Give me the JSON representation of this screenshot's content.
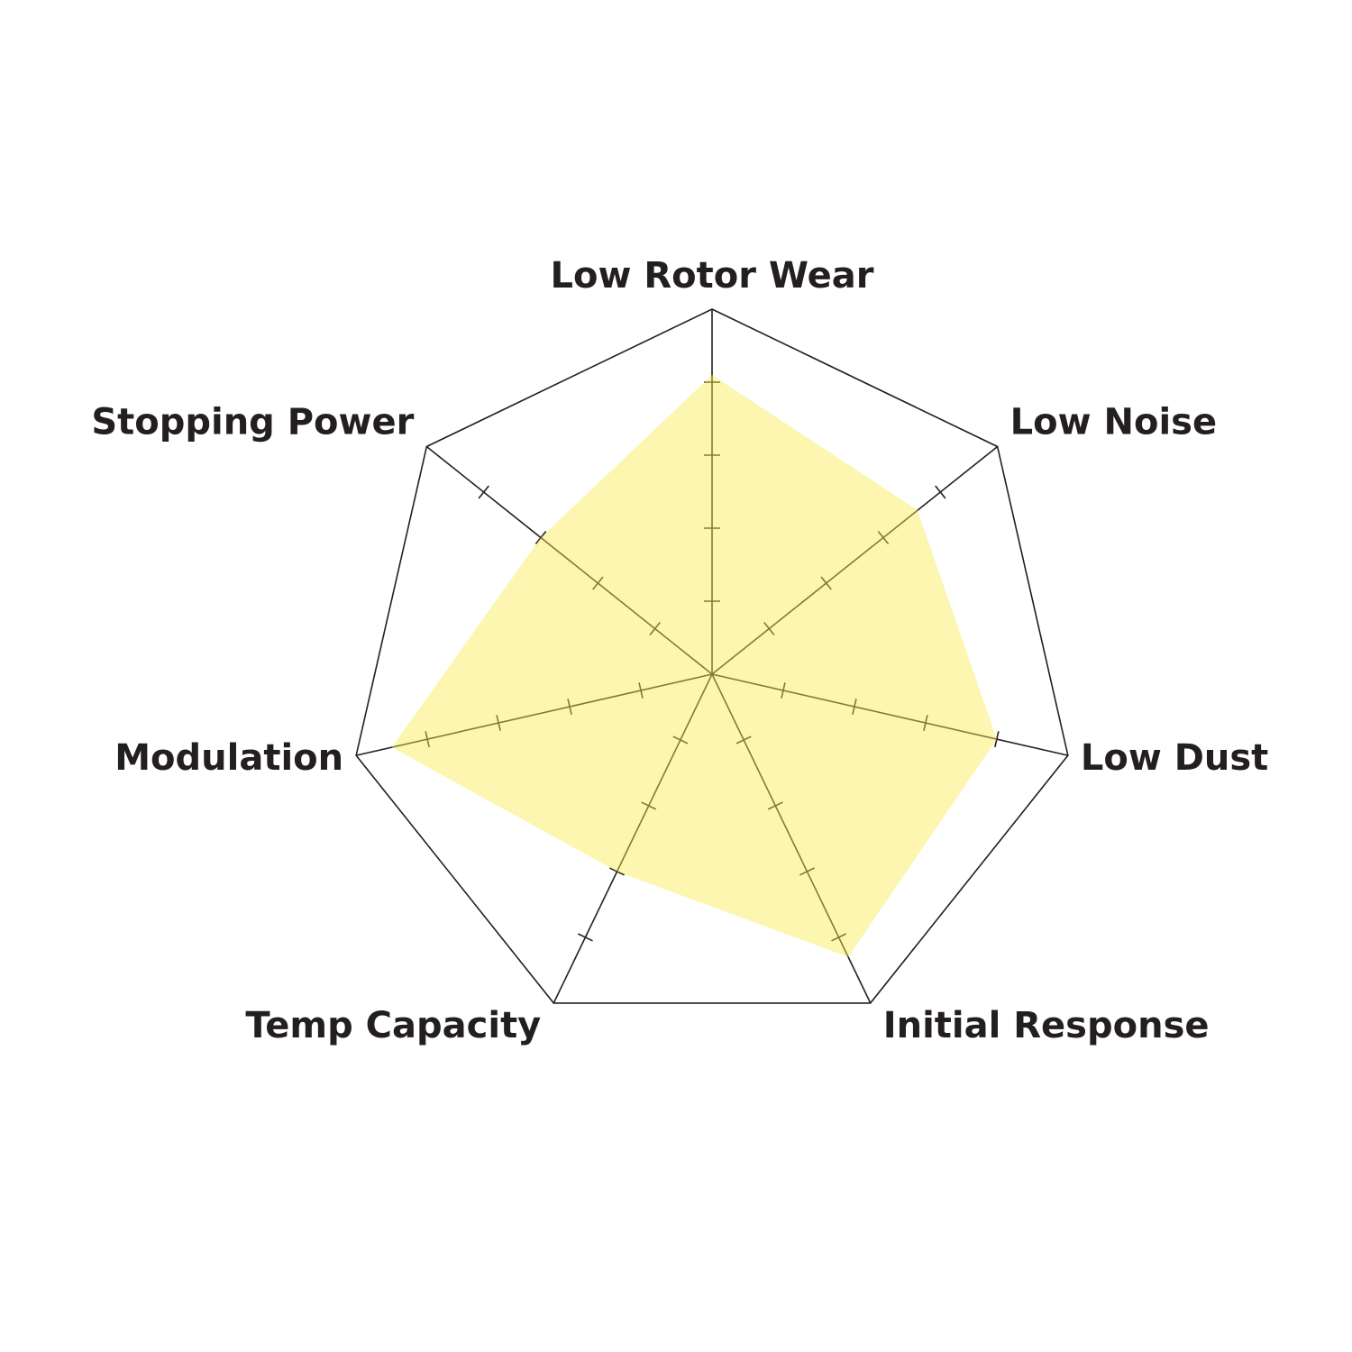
{
  "chart_data": {
    "type": "radar",
    "categories": [
      "Low Rotor Wear",
      "Low Noise",
      "Low Dust",
      "Initial Response",
      "Temp Capacity",
      "Modulation",
      "Stopping Power"
    ],
    "values": [
      4.1,
      3.6,
      4.0,
      4.3,
      3.0,
      4.5,
      3.0
    ],
    "color": "#f8ea50",
    "ylim": [
      0,
      5
    ],
    "yticks": [
      1,
      2,
      3,
      4
    ]
  }
}
